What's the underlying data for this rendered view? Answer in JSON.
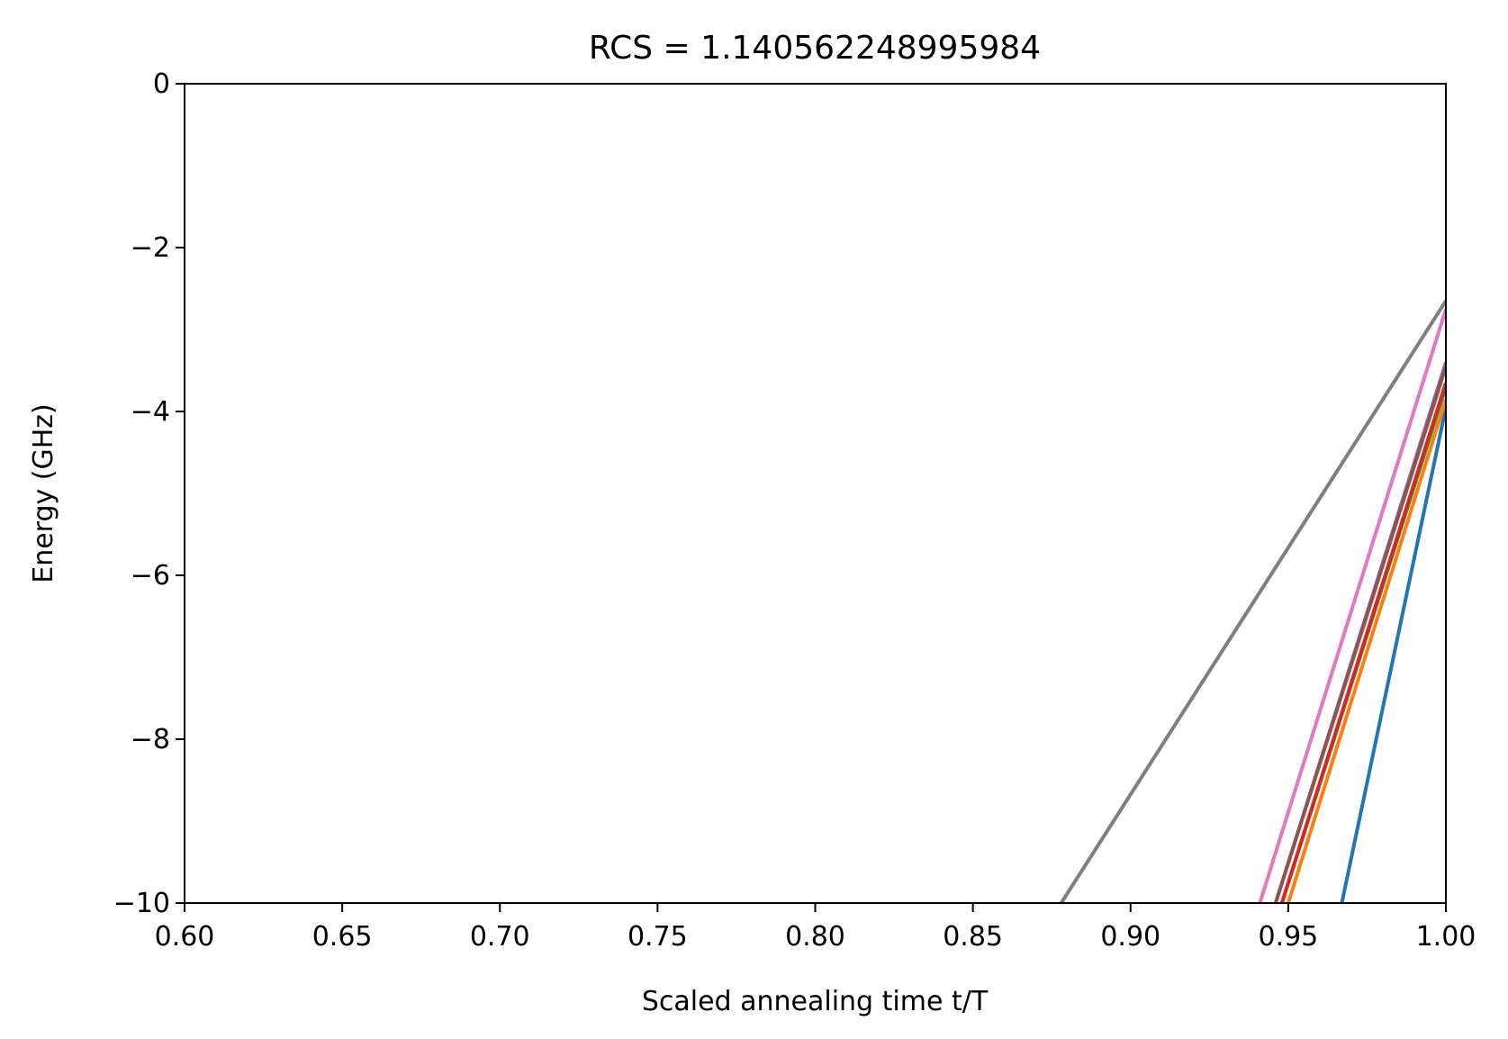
{
  "chart_data": {
    "type": "line",
    "title": "RCS = 1.140562248995984",
    "xlabel": "Scaled annealing time t/T",
    "ylabel": "Energy (GHz)",
    "xlim": [
      0.6,
      1.0
    ],
    "ylim": [
      -10,
      0
    ],
    "xticks": [
      0.6,
      0.65,
      0.7,
      0.75,
      0.8,
      0.85,
      0.9,
      0.95,
      1.0
    ],
    "xtick_labels": [
      "0.60",
      "0.65",
      "0.70",
      "0.75",
      "0.80",
      "0.85",
      "0.90",
      "0.95",
      "1.00"
    ],
    "yticks": [
      0,
      -2,
      -4,
      -6,
      -8,
      -10
    ],
    "ytick_labels": [
      "0",
      "−2",
      "−4",
      "−6",
      "−8",
      "−10"
    ],
    "grid": false,
    "legend": false,
    "series": [
      {
        "color": "#1f77b4",
        "x": [
          0.967,
          1.0
        ],
        "y": [
          -10,
          -3.95
        ]
      },
      {
        "color": "#ff7f0e",
        "x": [
          0.95,
          1.0
        ],
        "y": [
          -10,
          -3.85
        ]
      },
      {
        "color": "#2ca02c",
        "x": [
          0.948,
          1.0
        ],
        "y": [
          -10,
          -3.7
        ]
      },
      {
        "color": "#d62728",
        "x": [
          0.948,
          1.0
        ],
        "y": [
          -10,
          -3.65
        ]
      },
      {
        "color": "#9467bd",
        "x": [
          0.946,
          1.0
        ],
        "y": [
          -10,
          -3.4
        ]
      },
      {
        "color": "#8c564b",
        "x": [
          0.946,
          1.0
        ],
        "y": [
          -10,
          -3.45
        ]
      },
      {
        "color": "#e377c2",
        "x": [
          0.941,
          1.0
        ],
        "y": [
          -10,
          -2.75
        ]
      },
      {
        "color": "#7f7f7f",
        "x": [
          0.878,
          1.0
        ],
        "y": [
          -10,
          -2.65
        ]
      }
    ]
  }
}
